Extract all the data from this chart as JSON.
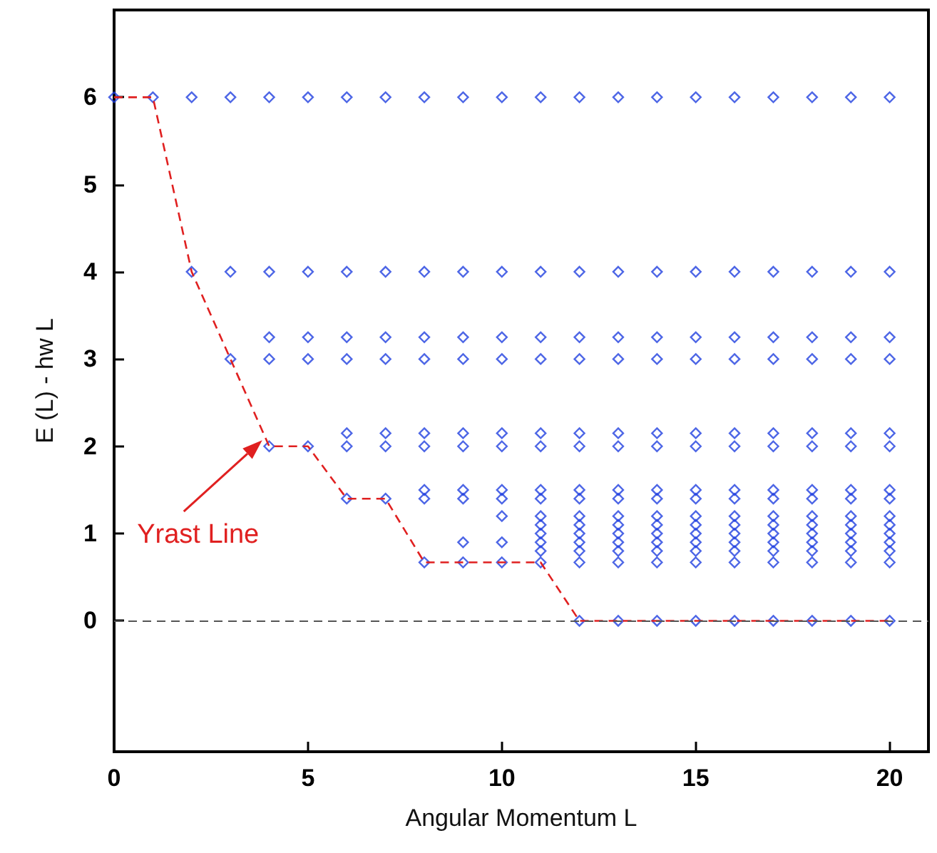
{
  "chart_data": {
    "type": "scatter",
    "xlabel": "Angular Momentum L",
    "ylabel": "E (L) - hw L",
    "xlim": [
      0,
      21
    ],
    "ylim": [
      -1.5,
      7
    ],
    "xticks": [
      0,
      5,
      10,
      15,
      20
    ],
    "yticks": [
      0,
      1,
      2,
      3,
      4,
      5,
      6
    ],
    "grid": false,
    "series": [
      {
        "type": "scatter",
        "marker": "diamond",
        "color": "#2040e0",
        "x": [
          0,
          1,
          2,
          3,
          4,
          5,
          6,
          7,
          8,
          9,
          10,
          11,
          12,
          13,
          14,
          15,
          16,
          17,
          18,
          19,
          20
        ],
        "values": [
          6,
          6,
          6,
          6,
          6,
          6,
          6,
          6,
          6,
          6,
          6,
          6,
          6,
          6,
          6,
          6,
          6,
          6,
          6,
          6,
          6
        ]
      },
      {
        "type": "scatter",
        "marker": "diamond",
        "color": "#2040e0",
        "x": [
          2,
          3,
          4,
          5,
          6,
          7,
          8,
          9,
          10,
          11,
          12,
          13,
          14,
          15,
          16,
          17,
          18,
          19,
          20
        ],
        "values": [
          4,
          4,
          4,
          4,
          4,
          4,
          4,
          4,
          4,
          4,
          4,
          4,
          4,
          4,
          4,
          4,
          4,
          4,
          4
        ]
      },
      {
        "type": "scatter",
        "marker": "diamond",
        "color": "#2040e0",
        "x": [
          4,
          5,
          6,
          7,
          8,
          9,
          10,
          11,
          12,
          13,
          14,
          15,
          16,
          17,
          18,
          19,
          20
        ],
        "values": [
          3.25,
          3.25,
          3.25,
          3.25,
          3.25,
          3.25,
          3.25,
          3.25,
          3.25,
          3.25,
          3.25,
          3.25,
          3.25,
          3.25,
          3.25,
          3.25,
          3.25
        ]
      },
      {
        "type": "scatter",
        "marker": "diamond",
        "color": "#2040e0",
        "x": [
          3,
          4,
          5,
          6,
          7,
          8,
          9,
          10,
          11,
          12,
          13,
          14,
          15,
          16,
          17,
          18,
          19,
          20
        ],
        "values": [
          3,
          3,
          3,
          3,
          3,
          3,
          3,
          3,
          3,
          3,
          3,
          3,
          3,
          3,
          3,
          3,
          3,
          3
        ]
      },
      {
        "type": "scatter",
        "marker": "diamond",
        "color": "#2040e0",
        "x": [
          6,
          7,
          8,
          9,
          10,
          11,
          12,
          13,
          14,
          15,
          16,
          17,
          18,
          19,
          20
        ],
        "values": [
          2.15,
          2.15,
          2.15,
          2.15,
          2.15,
          2.15,
          2.15,
          2.15,
          2.15,
          2.15,
          2.15,
          2.15,
          2.15,
          2.15,
          2.15
        ]
      },
      {
        "type": "scatter",
        "marker": "diamond",
        "color": "#2040e0",
        "x": [
          4,
          5,
          6,
          7,
          8,
          9,
          10,
          11,
          12,
          13,
          14,
          15,
          16,
          17,
          18,
          19,
          20
        ],
        "values": [
          2,
          2,
          2,
          2,
          2,
          2,
          2,
          2,
          2,
          2,
          2,
          2,
          2,
          2,
          2,
          2,
          2
        ]
      },
      {
        "type": "scatter",
        "marker": "diamond",
        "color": "#2040e0",
        "x": [
          8,
          9,
          10,
          11,
          12,
          13,
          14,
          15,
          16,
          17,
          18,
          19,
          20
        ],
        "values": [
          1.5,
          1.5,
          1.5,
          1.5,
          1.5,
          1.5,
          1.5,
          1.5,
          1.5,
          1.5,
          1.5,
          1.5,
          1.5
        ]
      },
      {
        "type": "scatter",
        "marker": "diamond",
        "color": "#2040e0",
        "x": [
          6,
          7,
          8,
          9,
          10,
          11,
          12,
          13,
          14,
          15,
          16,
          17,
          18,
          19,
          20
        ],
        "values": [
          1.4,
          1.4,
          1.4,
          1.4,
          1.4,
          1.4,
          1.4,
          1.4,
          1.4,
          1.4,
          1.4,
          1.4,
          1.4,
          1.4,
          1.4
        ]
      },
      {
        "type": "scatter",
        "marker": "diamond",
        "color": "#2040e0",
        "x": [
          10,
          11,
          12,
          13,
          14,
          15,
          16,
          17,
          18,
          19,
          20
        ],
        "values": [
          1.2,
          1.2,
          1.2,
          1.2,
          1.2,
          1.2,
          1.2,
          1.2,
          1.2,
          1.2,
          1.2
        ]
      },
      {
        "type": "scatter",
        "marker": "diamond",
        "color": "#2040e0",
        "x": [
          11,
          12,
          13,
          14,
          15,
          16,
          17,
          18,
          19,
          20
        ],
        "values": [
          1.1,
          1.1,
          1.1,
          1.1,
          1.1,
          1.1,
          1.1,
          1.1,
          1.1,
          1.1
        ]
      },
      {
        "type": "scatter",
        "marker": "diamond",
        "color": "#2040e0",
        "x": [
          11,
          12,
          13,
          14,
          15,
          16,
          17,
          18,
          19,
          20
        ],
        "values": [
          1,
          1,
          1,
          1,
          1,
          1,
          1,
          1,
          1,
          1
        ]
      },
      {
        "type": "scatter",
        "marker": "diamond",
        "color": "#2040e0",
        "x": [
          9,
          10,
          11,
          12,
          13,
          14,
          15,
          16,
          17,
          18,
          19,
          20
        ],
        "values": [
          0.9,
          0.9,
          0.9,
          0.9,
          0.9,
          0.9,
          0.9,
          0.9,
          0.9,
          0.9,
          0.9,
          0.9
        ]
      },
      {
        "type": "scatter",
        "marker": "diamond",
        "color": "#2040e0",
        "x": [
          11,
          12,
          13,
          14,
          15,
          16,
          17,
          18,
          19,
          20
        ],
        "values": [
          0.8,
          0.8,
          0.8,
          0.8,
          0.8,
          0.8,
          0.8,
          0.8,
          0.8,
          0.8
        ]
      },
      {
        "type": "scatter",
        "marker": "diamond",
        "color": "#2040e0",
        "x": [
          8,
          9,
          10,
          11,
          12,
          13,
          14,
          15,
          16,
          17,
          18,
          19,
          20
        ],
        "values": [
          0.67,
          0.67,
          0.67,
          0.67,
          0.67,
          0.67,
          0.67,
          0.67,
          0.67,
          0.67,
          0.67,
          0.67,
          0.67
        ]
      },
      {
        "type": "scatter",
        "marker": "diamond",
        "color": "#2040e0",
        "x": [
          12,
          13,
          14,
          15,
          16,
          17,
          18,
          19,
          20
        ],
        "values": [
          0,
          0,
          0,
          0,
          0,
          0,
          0,
          0,
          0
        ]
      },
      {
        "type": "line",
        "marker": "none",
        "line_style": "dashed",
        "color": "#e02020",
        "x": [
          0,
          1,
          2,
          3,
          4,
          5,
          6,
          7,
          8,
          11,
          12,
          20
        ],
        "values": [
          6,
          6,
          4,
          3,
          2,
          2,
          1.4,
          1.4,
          0.67,
          0.67,
          0,
          0
        ]
      }
    ],
    "ref_lines": [
      {
        "axis": "y",
        "value": 0,
        "color": "#555555",
        "line_style": "dashed"
      }
    ],
    "annotations": [
      "Yrast Line"
    ]
  }
}
